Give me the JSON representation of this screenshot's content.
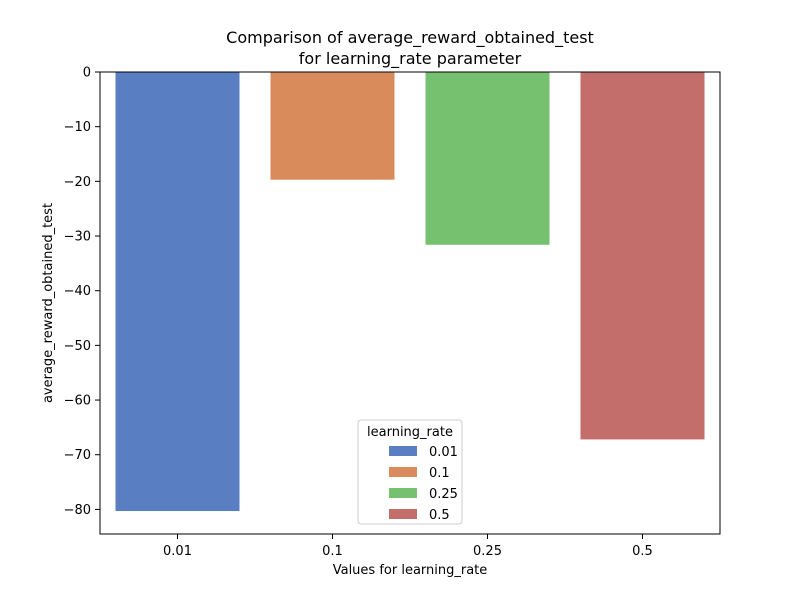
{
  "chart_data": {
    "type": "bar",
    "title_lines": [
      "Comparison of average_reward_obtained_test",
      "for learning_rate parameter"
    ],
    "xlabel": "Values for learning_rate",
    "ylabel": "average_reward_obtained_test",
    "categories": [
      "0.01",
      "0.1",
      "0.25",
      "0.5"
    ],
    "values": [
      -80.3,
      -19.7,
      -31.6,
      -67.2
    ],
    "colors": [
      "#5a7ec2",
      "#d98b5b",
      "#75c16f",
      "#c46e6c"
    ],
    "ylim": [
      -84.5,
      0
    ],
    "yticks": [
      0,
      -10,
      -20,
      -30,
      -40,
      -50,
      -60,
      -70,
      -80
    ],
    "ytick_labels": [
      "0",
      "−10",
      "−20",
      "−30",
      "−40",
      "−50",
      "−60",
      "−70",
      "−80"
    ],
    "grid": false,
    "legend": {
      "title": "learning_rate",
      "placement": "lower-center",
      "entries": [
        "0.01",
        "0.1",
        "0.25",
        "0.5"
      ]
    }
  }
}
